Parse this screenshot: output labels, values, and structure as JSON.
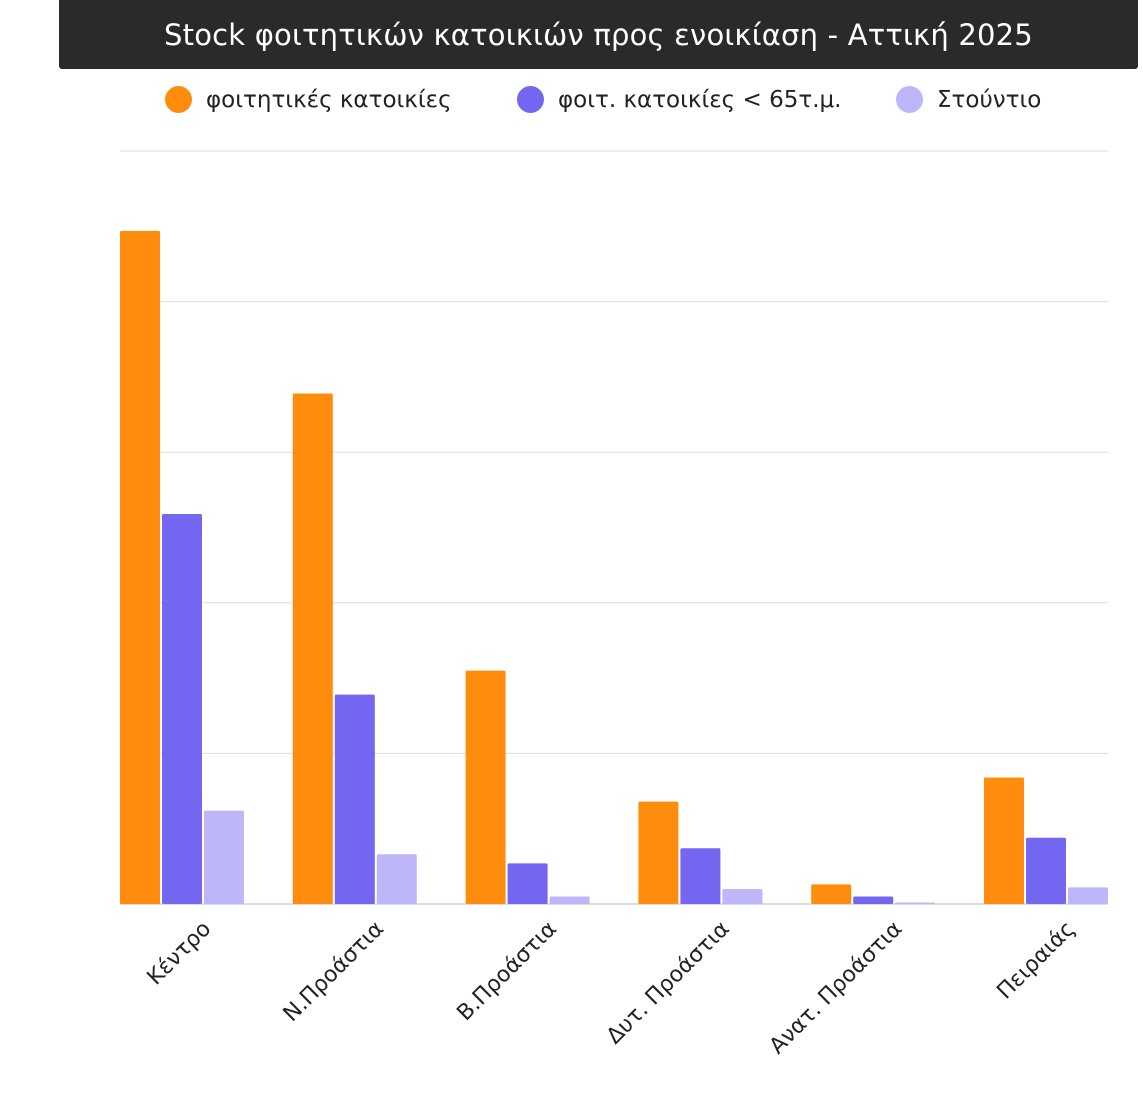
{
  "chart_data": {
    "type": "bar",
    "title": "Stock  φοιτητικών κατοικιών προς ενοικίαση - Αττική 2025",
    "xlabel": "",
    "ylabel": "",
    "ylim": [
      0,
      5
    ],
    "grid": true,
    "legend_position": "top-center",
    "categories": [
      "Κέντρο",
      "Ν.Προάστια",
      "Β.Προάστια",
      "Δυτ. Προάστια",
      "Ανατ. Προάστια",
      "Πειραιάς"
    ],
    "series": [
      {
        "name": "φοιτητικές κατοικίες",
        "color": "#FF8C0C",
        "values": [
          4.47,
          3.39,
          1.55,
          0.68,
          0.13,
          0.84
        ]
      },
      {
        "name": "φοιτ. κατοικίες < 65τ.μ.",
        "color": "#7466F0",
        "values": [
          2.59,
          1.39,
          0.27,
          0.37,
          0.05,
          0.44
        ]
      },
      {
        "name": "Στούντιο",
        "color": "#BDB7FA",
        "values": [
          0.62,
          0.33,
          0.05,
          0.1,
          0.01,
          0.11
        ]
      }
    ]
  }
}
